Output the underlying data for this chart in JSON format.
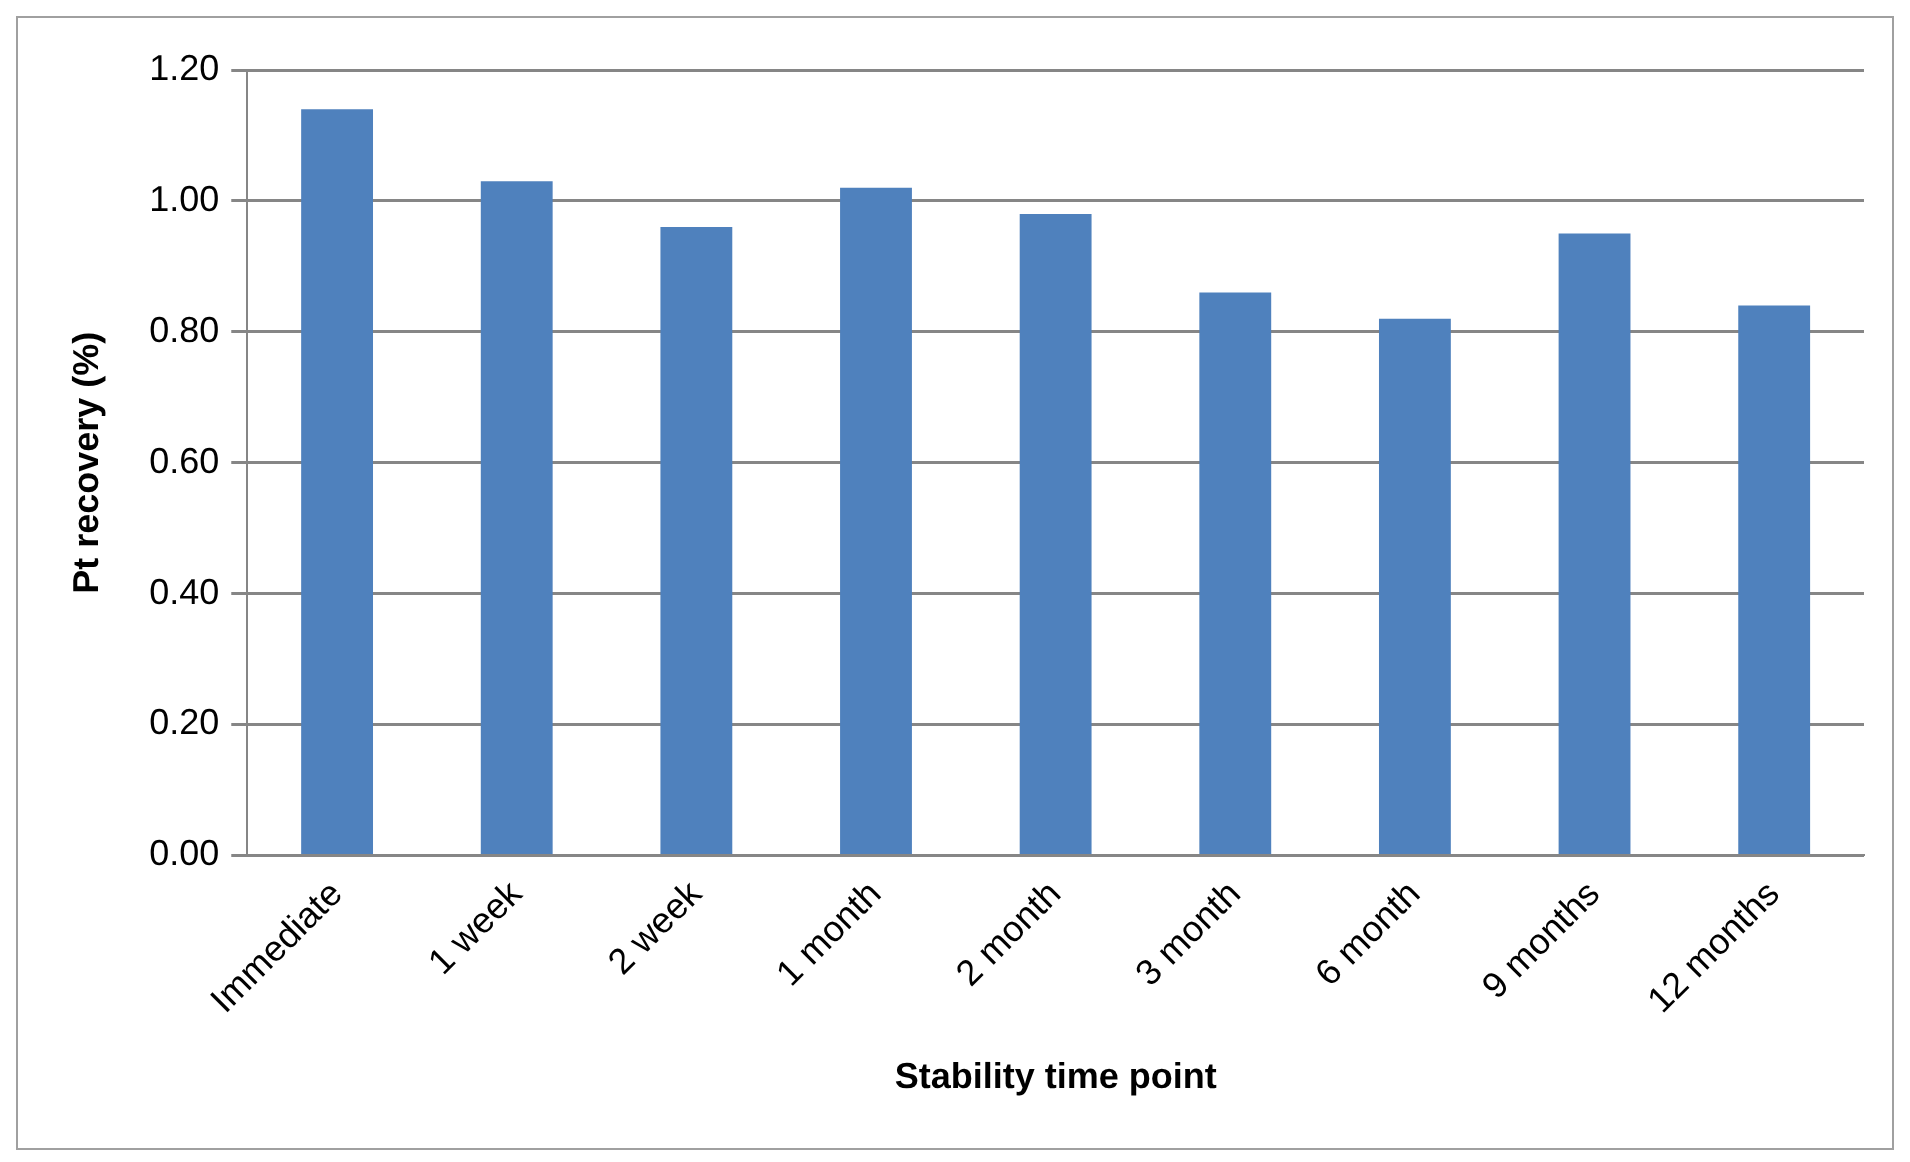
{
  "chart_data": {
    "type": "bar",
    "xlabel": "Stability time point",
    "ylabel": "Pt recovery (%)",
    "categories": [
      "Immediate",
      "1 week",
      "2 week",
      "1 month",
      "2 month",
      "3 month",
      "6 month",
      "9 months",
      "12 months"
    ],
    "values": [
      1.14,
      1.03,
      0.96,
      1.02,
      0.98,
      0.86,
      0.82,
      0.95,
      0.84
    ],
    "color": "#4f81bd",
    "ylim": [
      0,
      1.2
    ],
    "yticks": [
      {
        "value": 0,
        "label": "0.00"
      },
      {
        "value": 0.2,
        "label": "0.20"
      },
      {
        "value": 0.4,
        "label": "0.40"
      },
      {
        "value": 0.6,
        "label": "0.60"
      },
      {
        "value": 0.8,
        "label": "0.80"
      },
      {
        "value": 1,
        "label": "1.00"
      },
      {
        "value": 1.2,
        "label": "1.20"
      }
    ],
    "grid": "y",
    "legend": false
  }
}
